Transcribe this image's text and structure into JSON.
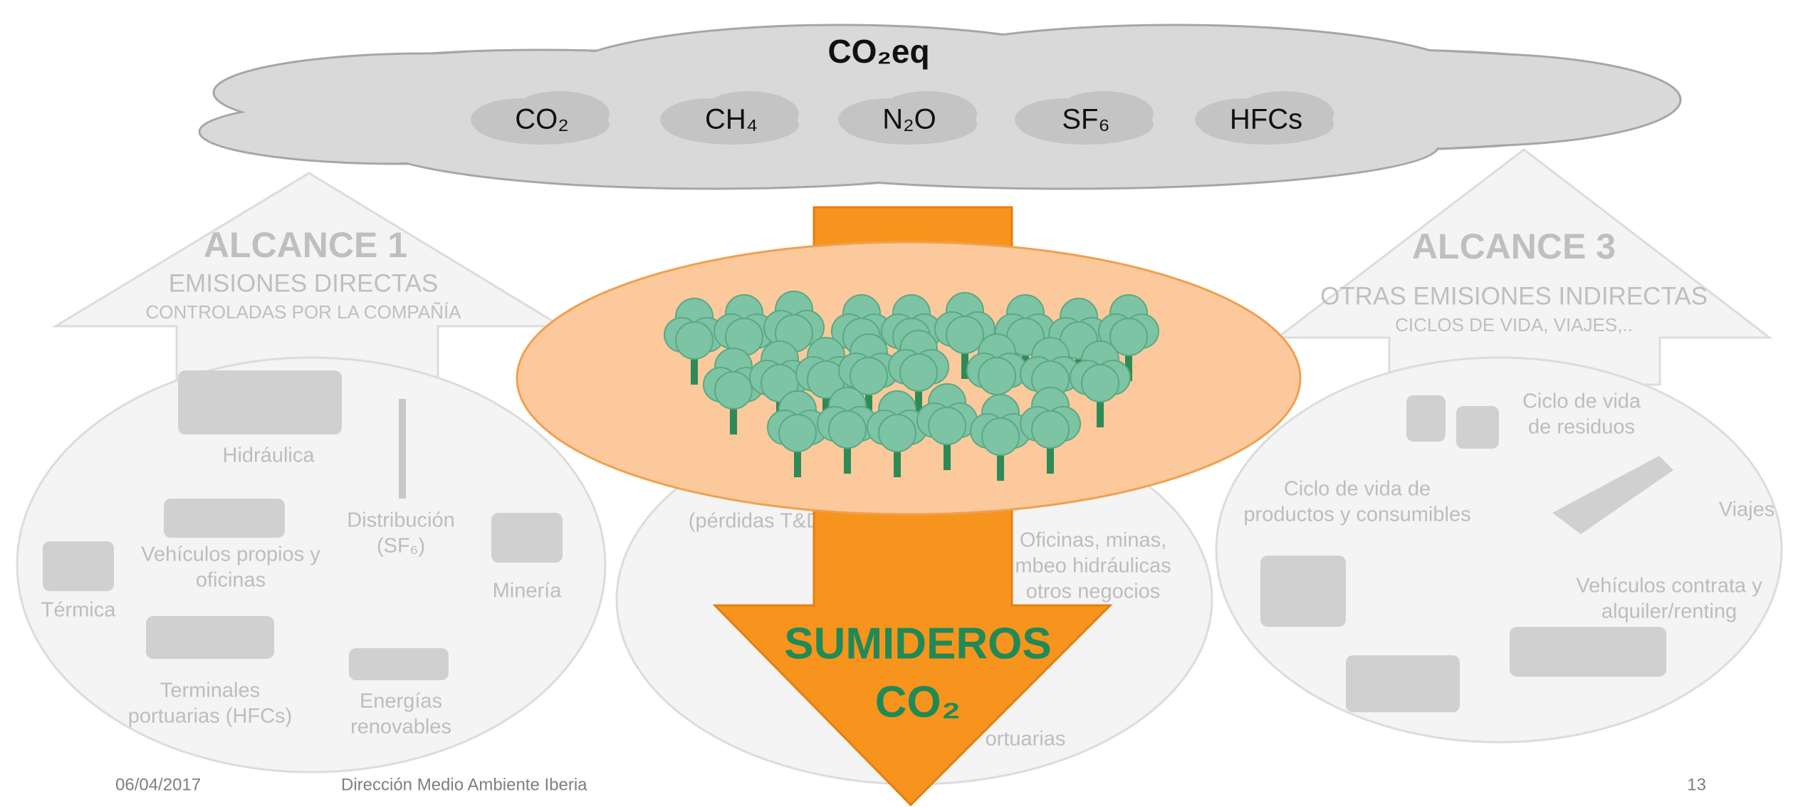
{
  "cloud": {
    "title": "CO₂eq",
    "gases": [
      "CO₂",
      "CH₄",
      "N₂O",
      "SF₆",
      "HFCs"
    ]
  },
  "scope1": {
    "title": "ALCANCE 1",
    "subtitle": "EMISIONES DIRECTAS",
    "note": "CONTROLADAS POR LA COMPAÑÍA",
    "items": [
      {
        "lines": [
          "Hidráulica"
        ]
      },
      {
        "lines": [
          "Distribución",
          "(SF₆)"
        ]
      },
      {
        "lines": [
          "Vehículos propios y",
          "oficinas"
        ]
      },
      {
        "lines": [
          "Térmica"
        ]
      },
      {
        "lines": [
          "Minería"
        ]
      },
      {
        "lines": [
          "Terminales",
          "portuarias (HFCs)"
        ]
      },
      {
        "lines": [
          "Energías",
          "renovables"
        ]
      }
    ]
  },
  "scope2": {
    "items": [
      {
        "lines": [
          "(pérdidas T&D"
        ]
      },
      {
        "lines": [
          "Oficinas, minas,",
          "mbeo hidráulicas",
          "otros negocios"
        ]
      },
      {
        "lines": [
          "ortuarias"
        ]
      }
    ]
  },
  "scope3": {
    "title": "ALCANCE 3",
    "subtitle": "OTRAS EMISIONES INDIRECTAS",
    "note": "CICLOS DE VIDA, VIAJES,..",
    "items": [
      {
        "lines": [
          "Ciclo de vida",
          "de residuos"
        ]
      },
      {
        "lines": [
          "Ciclo de vida de",
          "productos y consumibles"
        ]
      },
      {
        "lines": [
          "Viajes"
        ]
      },
      {
        "lines": [
          "Vehículos contrata y",
          "alquiler/renting"
        ]
      }
    ]
  },
  "sink": {
    "lines": [
      "SUMIDEROS",
      "CO₂"
    ]
  },
  "footer": {
    "date": "06/04/2017",
    "department": "Dirección Medio Ambiente Iberia",
    "page": "13"
  }
}
